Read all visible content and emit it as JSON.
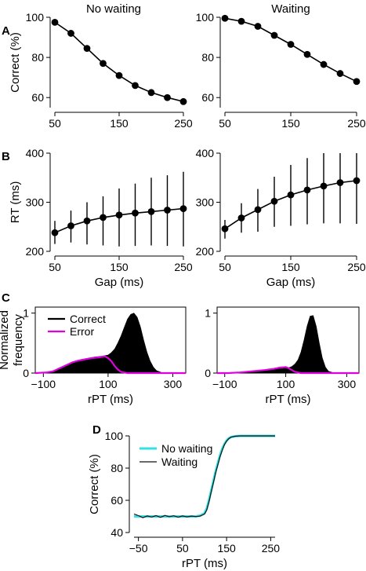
{
  "colors": {
    "ink": "#000000",
    "error": "#e000e0",
    "no_waiting": "#33e0e6",
    "waiting": "#111111"
  },
  "panel_letters": {
    "a": "A",
    "b": "B",
    "c": "C",
    "d": "D"
  },
  "column_titles": {
    "left": "No waiting",
    "right": "Waiting"
  },
  "chart_data": [
    {
      "id": "A-left",
      "panel": "A",
      "type": "line",
      "title": "No waiting",
      "xlabel": "",
      "ylabel": "Correct (%)",
      "x": [
        50,
        75,
        100,
        125,
        150,
        175,
        200,
        225,
        250
      ],
      "values": [
        97.5,
        92,
        84.5,
        77,
        71,
        66,
        62.5,
        60,
        58
      ],
      "ylim": [
        55,
        100
      ],
      "yticks": [
        60,
        80,
        100
      ],
      "xlim": [
        50,
        250
      ],
      "xticks": [
        50,
        150,
        250
      ],
      "grid": false
    },
    {
      "id": "A-right",
      "panel": "A",
      "type": "line",
      "title": "Waiting",
      "xlabel": "",
      "ylabel": "",
      "x": [
        50,
        75,
        100,
        125,
        150,
        175,
        200,
        225,
        250
      ],
      "values": [
        99.5,
        98,
        95.5,
        91,
        86.5,
        81.5,
        76.5,
        72,
        68
      ],
      "ylim": [
        55,
        100
      ],
      "yticks": [
        60,
        80,
        100
      ],
      "xlim": [
        50,
        250
      ],
      "xticks": [
        50,
        150,
        250
      ],
      "grid": false
    },
    {
      "id": "B-left",
      "panel": "B",
      "type": "line",
      "title": "",
      "xlabel": "Gap (ms)",
      "ylabel": "RT (ms)",
      "x": [
        50,
        75,
        100,
        125,
        150,
        175,
        200,
        225,
        250
      ],
      "values": [
        238,
        252,
        262,
        269,
        274,
        278,
        281,
        284,
        287
      ],
      "error_low": [
        215,
        218,
        214,
        212,
        210,
        211,
        212,
        211,
        210
      ],
      "error_high": [
        262,
        283,
        300,
        312,
        328,
        338,
        350,
        355,
        362
      ],
      "ylim": [
        200,
        400
      ],
      "yticks": [
        200,
        300,
        400
      ],
      "xlim": [
        50,
        250
      ],
      "xticks": [
        50,
        150,
        250
      ],
      "grid": false
    },
    {
      "id": "B-right",
      "panel": "B",
      "type": "line",
      "title": "",
      "xlabel": "Gap (ms)",
      "ylabel": "",
      "x": [
        50,
        75,
        100,
        125,
        150,
        175,
        200,
        225,
        250
      ],
      "values": [
        246,
        268,
        285,
        302,
        315,
        325,
        333,
        340,
        344
      ],
      "error_low": [
        226,
        238,
        240,
        250,
        252,
        255,
        257,
        257,
        256
      ],
      "error_high": [
        264,
        298,
        327,
        352,
        376,
        390,
        400,
        400,
        400
      ],
      "ylim": [
        200,
        400
      ],
      "yticks": [
        200,
        300,
        400
      ],
      "xlim": [
        50,
        250
      ],
      "xticks": [
        50,
        150,
        250
      ],
      "grid": false
    },
    {
      "id": "C-left",
      "panel": "C",
      "type": "area",
      "title": "",
      "xlabel": "rPT (ms)",
      "ylabel": "Normalized frequency",
      "xlim": [
        -125,
        340
      ],
      "ylim": [
        0,
        1.1
      ],
      "xticks": [
        -100,
        100,
        300
      ],
      "yticks": [
        0,
        1
      ],
      "legend_position": "top-left",
      "series": [
        {
          "name": "Correct",
          "style": "filled",
          "x": [
            -125,
            -80,
            -60,
            -40,
            -20,
            0,
            20,
            40,
            60,
            80,
            100,
            110,
            120,
            130,
            140,
            150,
            160,
            170,
            180,
            190,
            200,
            210,
            220,
            230,
            240,
            250,
            270,
            340
          ],
          "values": [
            0,
            0.01,
            0.04,
            0.09,
            0.15,
            0.2,
            0.23,
            0.25,
            0.27,
            0.28,
            0.3,
            0.34,
            0.4,
            0.5,
            0.62,
            0.76,
            0.9,
            0.98,
            1.0,
            0.93,
            0.77,
            0.55,
            0.35,
            0.2,
            0.1,
            0.04,
            0.0,
            0
          ]
        },
        {
          "name": "Error",
          "style": "line",
          "x": [
            -125,
            -90,
            -70,
            -50,
            -30,
            -10,
            10,
            30,
            50,
            70,
            90,
            100,
            110,
            120,
            130,
            140,
            150,
            160,
            340
          ],
          "values": [
            0,
            0.01,
            0.03,
            0.08,
            0.13,
            0.18,
            0.21,
            0.23,
            0.25,
            0.26,
            0.28,
            0.25,
            0.2,
            0.12,
            0.06,
            0.02,
            0.01,
            0,
            0
          ]
        }
      ]
    },
    {
      "id": "C-right",
      "panel": "C",
      "type": "area",
      "title": "",
      "xlabel": "rPT (ms)",
      "ylabel": "",
      "xlim": [
        -125,
        340
      ],
      "ylim": [
        0,
        1.1
      ],
      "xticks": [
        -100,
        100,
        300
      ],
      "yticks": [
        0,
        1
      ],
      "series": [
        {
          "name": "Correct",
          "style": "filled",
          "x": [
            -125,
            -60,
            -20,
            20,
            60,
            90,
            110,
            120,
            130,
            140,
            150,
            160,
            170,
            180,
            190,
            200,
            210,
            220,
            230,
            240,
            260,
            340
          ],
          "values": [
            0,
            0.01,
            0.03,
            0.05,
            0.07,
            0.08,
            0.09,
            0.11,
            0.15,
            0.22,
            0.35,
            0.55,
            0.78,
            0.95,
            0.96,
            0.78,
            0.5,
            0.25,
            0.1,
            0.03,
            0,
            0
          ]
        },
        {
          "name": "Error",
          "style": "line",
          "x": [
            -125,
            -90,
            -50,
            -10,
            30,
            60,
            80,
            100,
            110,
            120,
            130,
            140,
            150,
            340
          ],
          "values": [
            0,
            0.0,
            0.01,
            0.03,
            0.05,
            0.07,
            0.09,
            0.1,
            0.08,
            0.05,
            0.02,
            0.01,
            0,
            0
          ]
        }
      ]
    },
    {
      "id": "D",
      "panel": "D",
      "type": "line",
      "title": "",
      "xlabel": "rPT (ms)",
      "ylabel": "Correct (%)",
      "xlim": [
        -60,
        260
      ],
      "ylim": [
        40,
        100
      ],
      "xticks": [
        -50,
        50,
        150,
        250
      ],
      "yticks": [
        40,
        60,
        80,
        100
      ],
      "legend_position": "top-left",
      "series": [
        {
          "name": "No waiting",
          "x": [
            -60,
            -40,
            -20,
            0,
            20,
            40,
            60,
            80,
            90,
            100,
            105,
            110,
            115,
            120,
            125,
            130,
            135,
            140,
            145,
            150,
            155,
            160,
            170,
            180,
            200,
            220,
            260
          ],
          "values": [
            50,
            50,
            50,
            50,
            50,
            50,
            50,
            50,
            50.5,
            52,
            55,
            60,
            66,
            72,
            78,
            83,
            88,
            92,
            95,
            97,
            98.5,
            99.3,
            99.8,
            100,
            100,
            100,
            100
          ]
        },
        {
          "name": "Waiting",
          "x": [
            -60,
            -50,
            -40,
            -30,
            -20,
            -10,
            0,
            10,
            20,
            30,
            40,
            50,
            60,
            70,
            80,
            90,
            100,
            105,
            110,
            115,
            120,
            125,
            130,
            135,
            140,
            145,
            150,
            155,
            160,
            170,
            180,
            200,
            220,
            260
          ],
          "values": [
            51.5,
            50.5,
            49.2,
            50.3,
            49.6,
            50.5,
            49.4,
            50.6,
            49.8,
            50.4,
            49.5,
            50.3,
            49.7,
            50.2,
            49.9,
            50.2,
            51.5,
            54,
            59,
            65,
            71,
            77,
            82,
            87,
            91,
            94.5,
            96.8,
            98.3,
            99.2,
            99.8,
            100,
            100,
            100,
            100
          ]
        }
      ]
    }
  ]
}
